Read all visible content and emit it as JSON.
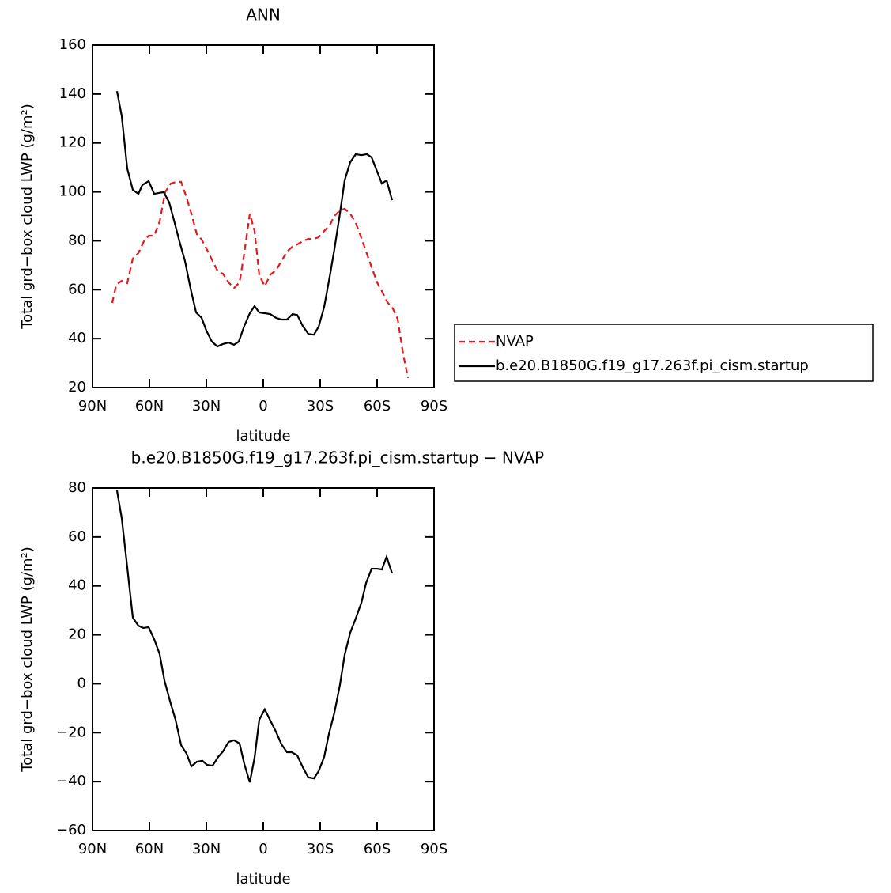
{
  "chart_data": [
    {
      "type": "line",
      "title": "ANN",
      "xlabel": "latitude",
      "ylabel": "Total grd−box cloud LWP (g/m²)",
      "xlim": [
        90,
        -90
      ],
      "xticks": [
        {
          "value": 90,
          "label": "90N"
        },
        {
          "value": 60,
          "label": "60N"
        },
        {
          "value": 30,
          "label": "30N"
        },
        0,
        {
          "value": -30,
          "label": "30S"
        },
        {
          "value": -60,
          "label": "60S"
        },
        {
          "value": -90,
          "label": "90S"
        }
      ],
      "ylim": [
        20,
        160
      ],
      "yticks": [
        20,
        40,
        60,
        80,
        100,
        120,
        140,
        160
      ],
      "legend": "right",
      "series": [
        {
          "name": "NVAP",
          "color": "#e41a1c",
          "dash": "dashed",
          "x": [
            79.6,
            77.5,
            74.6,
            71.7,
            68.75,
            65.8,
            62.9,
            60.4,
            57.5,
            54.6,
            51.7,
            48.75,
            45.8,
            43.3,
            40.4,
            37.9,
            35,
            32.5,
            29.6,
            26.7,
            23.75,
            21.25,
            18.3,
            15.4,
            12.5,
            10,
            7.1,
            4.6,
            2.1,
            -0.8,
            -3.75,
            -6.7,
            -9.6,
            -12.5,
            -15.4,
            -17.9,
            -20.8,
            -23.75,
            -26.7,
            -29.2,
            -32.1,
            -35,
            -37.5,
            -40.4,
            -42.9,
            -45.8,
            -48.75,
            -51.25,
            -54.2,
            -57.1,
            -60,
            -62.5,
            -65.4,
            -68.3,
            -70.8,
            -73.75,
            -76.25
          ],
          "values": [
            54.6,
            62,
            63.7,
            62.7,
            72.7,
            75,
            79.8,
            82.1,
            82.1,
            87.9,
            99.9,
            103.4,
            104.1,
            104.1,
            97.6,
            91.1,
            82.7,
            80.5,
            76.3,
            71.7,
            67.2,
            66.6,
            63,
            60.7,
            63,
            75,
            91.1,
            84,
            65.9,
            61.4,
            66.2,
            67.9,
            71.7,
            75.6,
            77.6,
            78.5,
            79.8,
            80.8,
            80.8,
            81.4,
            84,
            86.3,
            90.2,
            92.4,
            93.1,
            91.1,
            87.3,
            82.1,
            75.6,
            69.2,
            63,
            59.4,
            54.9,
            52.3,
            48.1,
            33.6,
            23.9
          ]
        },
        {
          "name": "b.e20.B1850G.f19_g17.263f.pi_cism.startup",
          "color": "#000000",
          "dash": "solid",
          "x": [
            77.1,
            74.6,
            71.7,
            68.75,
            65.8,
            63.75,
            60.4,
            57.5,
            52.5,
            49.6,
            47.1,
            44.2,
            41.25,
            38.3,
            35.4,
            32.5,
            30,
            27.1,
            24.2,
            21.25,
            18.3,
            15.4,
            12.9,
            10,
            7.1,
            4.6,
            2.1,
            -0.8,
            -3.75,
            -6.7,
            -9.6,
            -12.5,
            -15.4,
            -17.9,
            -20.8,
            -23.75,
            -26.7,
            -29.2,
            -32.1,
            -35,
            -37.5,
            -40.4,
            -42.9,
            -45.8,
            -48.75,
            -51.7,
            -54.6,
            -57.1,
            -60,
            -62.5,
            -65,
            -67.9
          ],
          "values": [
            141.2,
            131,
            109.6,
            100.8,
            99.2,
            102.8,
            104.4,
            99.2,
            99.9,
            95.7,
            88.5,
            79.8,
            71.7,
            60.4,
            50.7,
            48.5,
            43.3,
            38.8,
            36.8,
            37.8,
            38.4,
            37.5,
            38.8,
            45.2,
            50.4,
            53.3,
            50.7,
            50.4,
            50,
            48.5,
            47.8,
            47.8,
            50,
            49.7,
            45.2,
            41.9,
            41.6,
            44.9,
            53,
            65.3,
            76.6,
            91.1,
            104.7,
            112.1,
            115.4,
            115,
            115.4,
            114.1,
            108.3,
            103.4,
            104.7,
            96.6
          ]
        }
      ]
    },
    {
      "type": "line",
      "title": "b.e20.B1850G.f19_g17.263f.pi_cism.startup − NVAP",
      "xlabel": "latitude",
      "ylabel": "Total grd−box cloud LWP (g/m²)",
      "xlim": [
        90,
        -90
      ],
      "xticks": [
        {
          "value": 90,
          "label": "90N"
        },
        {
          "value": 60,
          "label": "60N"
        },
        {
          "value": 30,
          "label": "30N"
        },
        0,
        {
          "value": -30,
          "label": "30S"
        },
        {
          "value": -60,
          "label": "60S"
        },
        {
          "value": -90,
          "label": "90S"
        }
      ],
      "ylim": [
        -60,
        80
      ],
      "yticks": [
        {
          "value": -60,
          "label": "−60"
        },
        {
          "value": -40,
          "label": "−40"
        },
        {
          "value": -20,
          "label": "−20"
        },
        0,
        20,
        40,
        60,
        80
      ],
      "series": [
        {
          "color": "#000000",
          "dash": "solid",
          "x": [
            77.1,
            74.6,
            71.7,
            68.75,
            65.8,
            63.3,
            60.4,
            57.5,
            54.6,
            52.1,
            49.2,
            46.25,
            43.3,
            40.4,
            37.9,
            35,
            32.1,
            29.6,
            26.7,
            23.75,
            21.25,
            18.3,
            15.4,
            12.5,
            10,
            7.1,
            4.6,
            2.1,
            -0.8,
            -3.75,
            -6.7,
            -9.6,
            -12.5,
            -15,
            -17.9,
            -20.8,
            -23.75,
            -26.7,
            -29.2,
            -32.1,
            -34.6,
            -37.5,
            -40.4,
            -42.9,
            -45.8,
            -48.75,
            -51.7,
            -54.2,
            -57.1,
            -60,
            -62.5,
            -65,
            -67.9
          ],
          "values": [
            79,
            67.7,
            47.7,
            27,
            23.7,
            22.8,
            23.1,
            18.2,
            12.1,
            1.4,
            -7,
            -14.7,
            -25.1,
            -28.6,
            -33.8,
            -31.9,
            -31.5,
            -33.2,
            -33.5,
            -29.9,
            -27.7,
            -23.8,
            -23.1,
            -24.4,
            -32.8,
            -40.3,
            -30.3,
            -14.7,
            -10.5,
            -15.1,
            -19.6,
            -24.8,
            -28,
            -28,
            -29.3,
            -34.1,
            -38.3,
            -38.7,
            -35.7,
            -29.9,
            -20.5,
            -11.8,
            -0.5,
            11.8,
            20.8,
            26.7,
            33.1,
            41.2,
            47,
            47,
            46.7,
            51.9,
            45.1
          ]
        }
      ]
    }
  ]
}
